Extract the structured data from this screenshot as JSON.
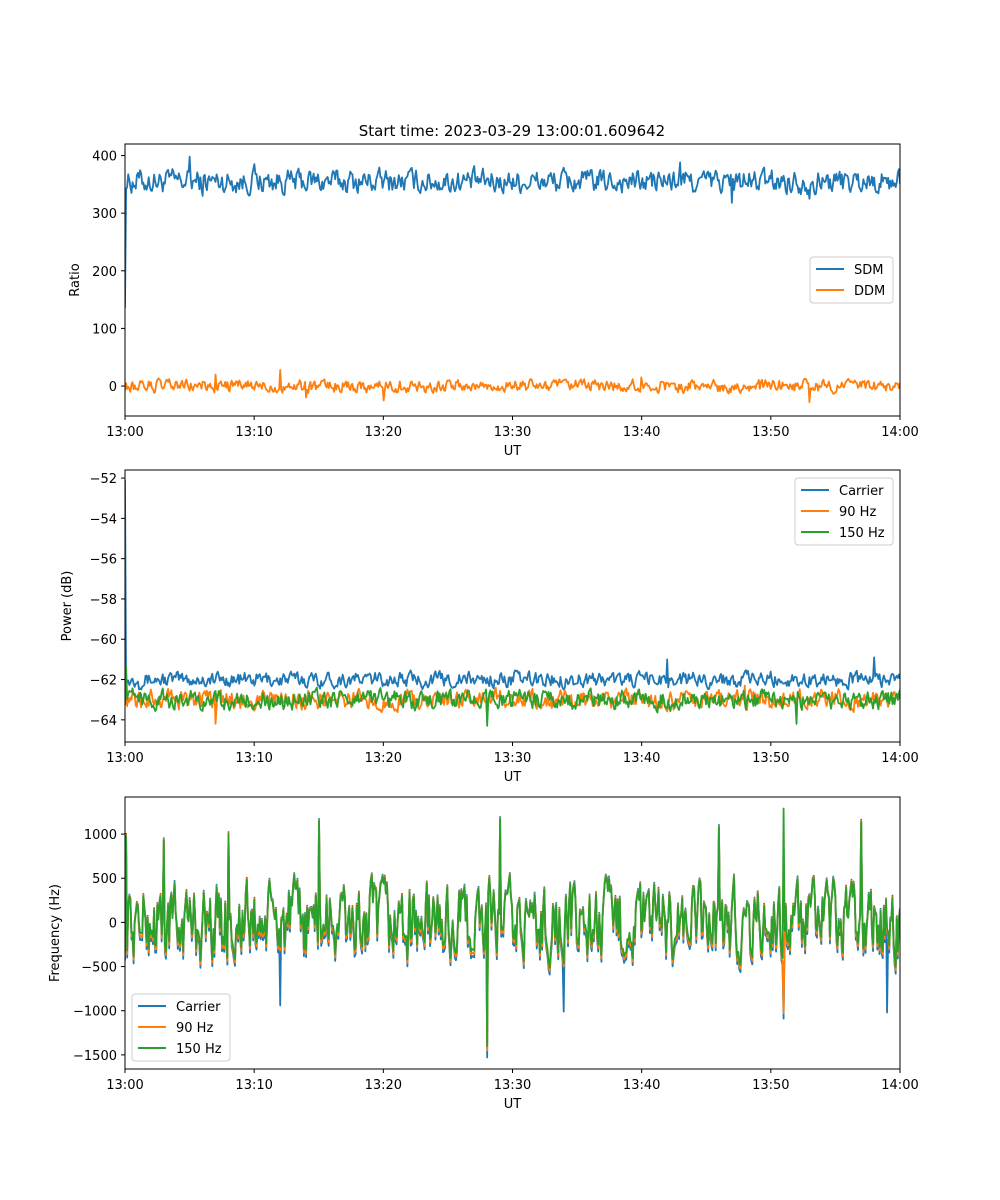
{
  "figure": {
    "title": "Start time: 2023-03-29 13:00:01.609642"
  },
  "chart_data": [
    {
      "type": "line",
      "xlabel": "UT",
      "ylabel": "Ratio",
      "xlim": [
        "13:00",
        "14:00"
      ],
      "xticks": [
        "13:00",
        "13:10",
        "13:20",
        "13:30",
        "13:40",
        "13:50",
        "14:00"
      ],
      "ylim": [
        -52,
        420
      ],
      "yticks": [
        0,
        100,
        200,
        300,
        400
      ],
      "legend_position": "center-right",
      "series": [
        {
          "name": "SDM",
          "color": "#1f77b4",
          "start_value": 135,
          "mean": 355,
          "noise_amplitude": 22,
          "x": [
            "13:01",
            "13:05",
            "13:06",
            "13:10",
            "13:20",
            "13:30",
            "13:40",
            "13:43",
            "13:47",
            "13:50",
            "13:53",
            "13:59"
          ],
          "values": [
            370,
            398,
            330,
            385,
            355,
            360,
            350,
            388,
            318,
            360,
            325,
            352
          ]
        },
        {
          "name": "DDM",
          "color": "#ff7f0e",
          "mean": 0,
          "noise_amplitude": 12,
          "x": [
            "13:00",
            "13:07",
            "13:12",
            "13:14",
            "13:20",
            "13:30",
            "13:40",
            "13:50",
            "13:53",
            "13:59"
          ],
          "values": [
            5,
            20,
            28,
            -20,
            -25,
            0,
            15,
            -5,
            -28,
            2
          ]
        }
      ]
    },
    {
      "type": "line",
      "xlabel": "UT",
      "ylabel": "Power (dB)",
      "xlim": [
        "13:00",
        "14:00"
      ],
      "xticks": [
        "13:00",
        "13:10",
        "13:20",
        "13:30",
        "13:40",
        "13:50",
        "14:00"
      ],
      "ylim": [
        -65.1,
        -51.6
      ],
      "yticks": [
        -64,
        -62,
        -60,
        -58,
        -56,
        -54,
        -52
      ],
      "legend_position": "top-right",
      "series": [
        {
          "name": "Carrier",
          "color": "#1f77b4",
          "start_value": -52.1,
          "mean": -62.0,
          "noise_amplitude": 0.4,
          "x": [
            "13:01",
            "13:10",
            "13:20",
            "13:30",
            "13:40",
            "13:42",
            "13:50",
            "13:58"
          ],
          "values": [
            -62.1,
            -62.3,
            -62.2,
            -62.1,
            -61.8,
            -61.0,
            -61.6,
            -60.9
          ]
        },
        {
          "name": "90 Hz",
          "color": "#ff7f0e",
          "mean": -63.0,
          "noise_amplitude": 0.5,
          "x": [
            "13:00",
            "13:07",
            "13:20",
            "13:28",
            "13:40",
            "13:48",
            "13:59"
          ],
          "values": [
            -62.9,
            -64.2,
            -63.0,
            -64.0,
            -63.0,
            -62.3,
            -63.1
          ]
        },
        {
          "name": "150 Hz",
          "color": "#2ca02c",
          "mean": -63.0,
          "noise_amplitude": 0.5,
          "x": [
            "13:00",
            "13:10",
            "13:20",
            "13:28",
            "13:40",
            "13:52",
            "13:59"
          ],
          "values": [
            -61.3,
            -63.3,
            -63.0,
            -64.3,
            -63.0,
            -64.2,
            -63.1
          ]
        }
      ]
    },
    {
      "type": "line",
      "xlabel": "UT",
      "ylabel": "Frequency (Hz)",
      "xlim": [
        "13:00",
        "14:00"
      ],
      "xticks": [
        "13:00",
        "13:10",
        "13:20",
        "13:30",
        "13:40",
        "13:50",
        "14:00"
      ],
      "ylim": [
        -1660,
        1420
      ],
      "yticks": [
        -1500,
        -1000,
        -500,
        0,
        500,
        1000
      ],
      "legend_position": "bottom-left",
      "series": [
        {
          "name": "Carrier",
          "color": "#1f77b4",
          "offset_from_150hz": -80,
          "x": [
            "13:12",
            "13:28",
            "13:34",
            "13:51",
            "13:59"
          ],
          "values": [
            -940,
            -1530,
            -1010,
            -1090,
            -1020
          ]
        },
        {
          "name": "90 Hz",
          "color": "#ff7f0e",
          "offset_from_150hz": -40,
          "x": [
            "13:28",
            "13:51"
          ],
          "values": [
            -1450,
            -1030
          ]
        },
        {
          "name": "150 Hz",
          "color": "#2ca02c",
          "mean": 0,
          "noise_amplitude": 450,
          "x": [
            "13:00",
            "13:03",
            "13:08",
            "13:15",
            "13:28",
            "13:29",
            "13:46",
            "13:51",
            "13:57"
          ],
          "values": [
            980,
            930,
            1000,
            1150,
            -1400,
            1170,
            1080,
            1290,
            1140
          ]
        }
      ]
    }
  ]
}
